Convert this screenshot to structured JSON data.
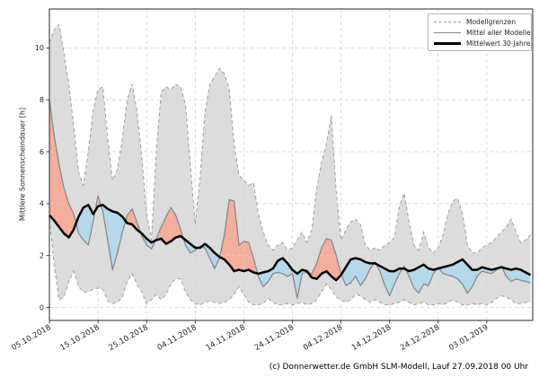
{
  "footer": "(c) Donnerwetter.de GmbH SLM-Modell, Lauf 27.09.2018 00 Uhr",
  "chart_data": {
    "type": "line",
    "title": "",
    "ylabel": "Mittlere Sonnenscheindauer [h]",
    "ylim": [
      -0.5,
      11.5
    ],
    "yticks": [
      0,
      2,
      4,
      6,
      8,
      10
    ],
    "grid": "dashed",
    "legend_position": "upper right",
    "start_date": "05.10.2018",
    "end_date": "12.01.2019",
    "x_unit": "days",
    "x_tick_days": [
      0,
      10,
      20,
      30,
      40,
      50,
      60,
      70,
      80,
      90
    ],
    "x_tick_labels": [
      "05.10.2018",
      "15.10.2018",
      "25.10.2018",
      "04.11.2018",
      "14.11.2018",
      "24.11.2018",
      "04.12.2018",
      "14.12.2018",
      "24.12.2018",
      "03.01.2019"
    ],
    "legend": [
      {
        "label": "Modellgrenzen",
        "style": "dashed",
        "color": "#999999"
      },
      {
        "label": "Mittel aller Modelle",
        "style": "solid",
        "color": "#888888"
      },
      {
        "label": "Mittelwert 30 Jahre",
        "style": "solid-thick",
        "color": "#000000"
      }
    ],
    "colors": {
      "envelope_fill": "#dcdcdc",
      "bound_line": "#a0a0a0",
      "model_mean_line": "#8a8a8a",
      "mean30_line": "#000000",
      "above_fill": "#f3ae9d",
      "below_fill": "#b5d8ea",
      "grid": "#d3d3d3",
      "spine": "#262626"
    },
    "series": [
      {
        "name": "model_max",
        "values": [
          10.2,
          10.7,
          10.9,
          9.8,
          8.6,
          7.0,
          5.2,
          4.7,
          6.0,
          7.6,
          8.4,
          8.5,
          6.5,
          4.9,
          5.3,
          6.5,
          8.0,
          8.6,
          7.6,
          5.8,
          3.6,
          2.6,
          6.0,
          8.3,
          8.5,
          8.4,
          8.6,
          8.5,
          7.8,
          5.5,
          3.2,
          5.0,
          7.5,
          8.6,
          8.9,
          9.2,
          9.0,
          8.4,
          6.3,
          5.1,
          4.9,
          4.7,
          4.8,
          3.6,
          2.9,
          2.4,
          2.2,
          2.4,
          2.5,
          2.2,
          2.3,
          2.6,
          2.9,
          2.5,
          3.0,
          4.6,
          5.6,
          6.3,
          7.4,
          4.5,
          2.6,
          3.0,
          3.3,
          3.4,
          3.2,
          2.4,
          2.2,
          2.3,
          2.2,
          2.4,
          2.5,
          2.7,
          3.9,
          4.4,
          3.3,
          2.4,
          2.2,
          2.9,
          2.3,
          2.1,
          2.3,
          2.8,
          3.6,
          4.1,
          4.2,
          3.6,
          2.4,
          2.1,
          2.1,
          2.3,
          2.4,
          2.5,
          2.7,
          2.9,
          3.1,
          3.4,
          2.9,
          2.5,
          2.6,
          2.8
        ]
      },
      {
        "name": "model_min",
        "values": [
          3.4,
          1.6,
          0.3,
          0.4,
          1.0,
          1.4,
          0.8,
          0.6,
          0.6,
          0.7,
          0.75,
          0.7,
          0.25,
          0.15,
          0.2,
          0.4,
          1.0,
          1.3,
          0.9,
          0.6,
          0.15,
          0.3,
          0.5,
          0.3,
          0.5,
          0.9,
          1.1,
          1.1,
          0.6,
          0.3,
          0.15,
          0.1,
          0.2,
          0.25,
          0.2,
          0.15,
          0.2,
          0.3,
          0.5,
          0.8,
          0.5,
          0.2,
          0.1,
          0.1,
          0.15,
          0.35,
          0.2,
          0.1,
          0.1,
          0.15,
          0.1,
          0.15,
          0.2,
          0.1,
          0.15,
          0.3,
          0.6,
          0.9,
          0.7,
          0.4,
          0.3,
          0.2,
          0.3,
          0.5,
          0.45,
          0.3,
          0.2,
          0.3,
          0.2,
          0.1,
          0.1,
          0.15,
          0.2,
          0.3,
          0.2,
          0.1,
          0.15,
          0.2,
          0.1,
          0.1,
          0.15,
          0.1,
          0.2,
          0.3,
          0.2,
          0.1,
          0.1,
          0.15,
          0.1,
          0.15,
          0.1,
          0.2,
          0.35,
          0.45,
          0.4,
          0.3,
          0.15,
          0.15,
          0.2,
          0.2
        ]
      },
      {
        "name": "model_mean",
        "values": [
          8.0,
          6.6,
          5.5,
          4.6,
          4.0,
          3.6,
          2.85,
          2.6,
          2.4,
          3.3,
          4.3,
          3.7,
          2.6,
          1.45,
          2.1,
          2.9,
          3.55,
          3.8,
          3.3,
          2.75,
          2.4,
          2.25,
          2.65,
          3.1,
          3.5,
          3.85,
          3.55,
          3.0,
          2.4,
          2.1,
          2.2,
          2.35,
          2.3,
          1.9,
          1.5,
          1.9,
          2.8,
          4.15,
          4.1,
          2.4,
          2.55,
          2.5,
          1.9,
          1.2,
          0.8,
          1.0,
          1.3,
          1.35,
          1.3,
          1.2,
          1.3,
          0.35,
          1.3,
          1.35,
          1.3,
          1.7,
          2.3,
          2.65,
          2.6,
          2.0,
          1.3,
          0.85,
          0.95,
          1.2,
          0.85,
          1.1,
          1.5,
          1.75,
          1.4,
          0.85,
          0.45,
          0.9,
          1.3,
          1.6,
          1.2,
          0.75,
          0.55,
          0.9,
          0.85,
          1.3,
          1.55,
          1.3,
          1.25,
          1.2,
          1.1,
          0.9,
          0.55,
          0.8,
          1.2,
          1.4,
          1.35,
          1.3,
          1.45,
          1.6,
          1.2,
          1.0,
          1.1,
          1.05,
          1.0,
          0.95
        ]
      },
      {
        "name": "mean_30y",
        "values": [
          3.55,
          3.35,
          3.1,
          2.85,
          2.7,
          3.0,
          3.5,
          3.85,
          3.95,
          3.6,
          3.9,
          3.95,
          3.8,
          3.7,
          3.65,
          3.5,
          3.25,
          3.2,
          3.0,
          2.85,
          2.65,
          2.5,
          2.6,
          2.65,
          2.45,
          2.55,
          2.7,
          2.75,
          2.6,
          2.45,
          2.3,
          2.3,
          2.45,
          2.3,
          2.1,
          1.95,
          1.85,
          1.65,
          1.4,
          1.45,
          1.4,
          1.45,
          1.35,
          1.3,
          1.35,
          1.4,
          1.5,
          1.8,
          1.9,
          1.7,
          1.45,
          1.3,
          1.45,
          1.4,
          1.15,
          1.1,
          1.3,
          1.4,
          1.2,
          1.05,
          1.25,
          1.55,
          1.85,
          1.9,
          1.85,
          1.75,
          1.7,
          1.7,
          1.6,
          1.5,
          1.4,
          1.4,
          1.5,
          1.5,
          1.4,
          1.45,
          1.55,
          1.65,
          1.5,
          1.45,
          1.5,
          1.55,
          1.6,
          1.65,
          1.75,
          1.85,
          1.65,
          1.45,
          1.45,
          1.55,
          1.5,
          1.45,
          1.5,
          1.55,
          1.5,
          1.45,
          1.5,
          1.45,
          1.35,
          1.25
        ]
      }
    ]
  }
}
